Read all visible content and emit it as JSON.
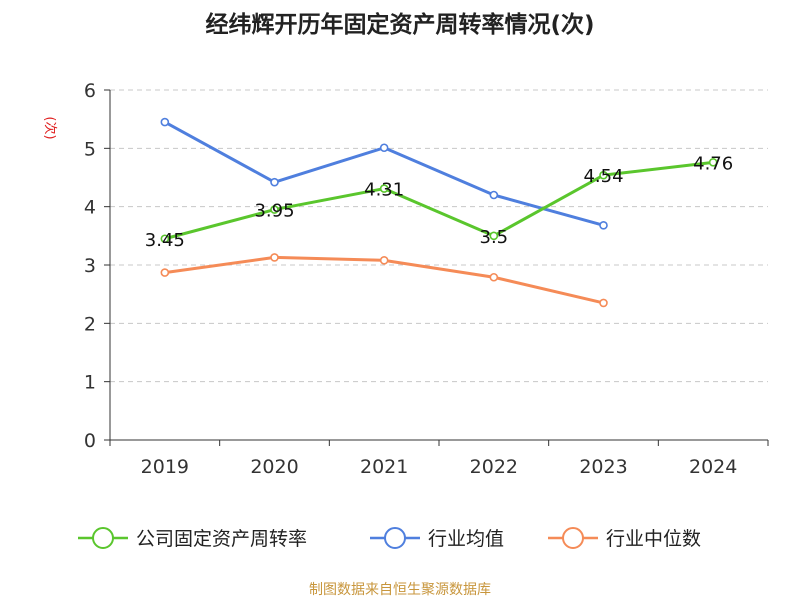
{
  "chart_data": {
    "type": "line",
    "title": "经纬辉开历年固定资产周转率情况(次)",
    "ylabel": "(次)",
    "xlabel": "",
    "categories": [
      "2019",
      "2020",
      "2021",
      "2022",
      "2023",
      "2024"
    ],
    "ylim": [
      0,
      6
    ],
    "yticks": [
      "0",
      "1",
      "2",
      "3",
      "4",
      "5",
      "6"
    ],
    "grid": true,
    "legend_position": "bottom",
    "series": [
      {
        "name": "公司固定资产周转率",
        "color": "#5ac62d",
        "values": [
          3.45,
          3.95,
          4.31,
          3.5,
          4.54,
          4.76
        ],
        "labels": [
          "3.45",
          "3.95",
          "4.31",
          "3.5",
          "4.54",
          "4.76"
        ]
      },
      {
        "name": "行业均值",
        "color": "#4f7fde",
        "values": [
          5.45,
          4.42,
          5.01,
          4.2,
          3.68,
          null
        ]
      },
      {
        "name": "行业中位数",
        "color": "#f58b57",
        "values": [
          2.87,
          3.13,
          3.08,
          2.79,
          2.35,
          null
        ]
      }
    ]
  },
  "footer": {
    "source": "制图数据来自恒生聚源数据库"
  }
}
